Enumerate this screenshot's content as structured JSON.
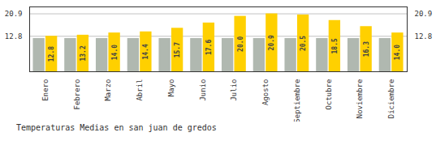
{
  "chart_data": {
    "type": "bar",
    "title": "Temperaturas Medias en san juan de gredos",
    "categories": [
      "Enero",
      "Febrero",
      "Marzo",
      "Abril",
      "Mayo",
      "Junio",
      "Julio",
      "Agosto",
      "Septiembre",
      "Octubre",
      "Noviembre",
      "Diciembre"
    ],
    "series": [
      {
        "color": "#B0B8B0",
        "values": [
          12.0,
          12.0,
          12.0,
          12.0,
          12.0,
          12.0,
          12.0,
          12.0,
          12.0,
          12.0,
          12.0,
          12.0
        ]
      },
      {
        "color": "#FFD000",
        "values": [
          12.8,
          13.2,
          14.0,
          14.4,
          15.7,
          17.6,
          20.0,
          20.9,
          20.5,
          18.5,
          16.3,
          14.0
        ],
        "value_labels": [
          "12.8",
          "13.2",
          "14.0",
          "14.4",
          "15.7",
          "17.6",
          "20.0",
          "20.9",
          "20.5",
          "18.5",
          "16.3",
          "14.0"
        ],
        "data_labels": true
      }
    ],
    "ylim": [
      0,
      23.4
    ],
    "yticks": [
      12.8,
      20.9
    ],
    "grid": true
  }
}
